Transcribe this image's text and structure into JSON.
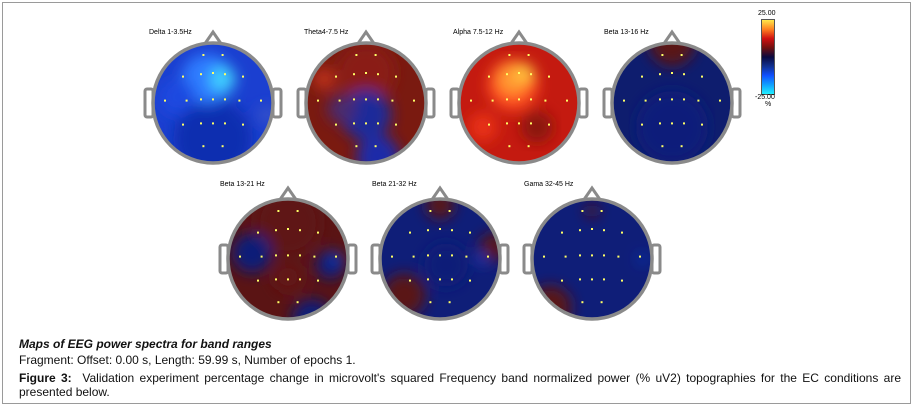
{
  "maps": [
    {
      "id": "delta",
      "label": "Delta 1-3.5Hz",
      "colors": {
        "bg": "#1b3fd0",
        "blobs": [
          [
            "#0f2fb0",
            0.5,
            0.8,
            0.55
          ],
          [
            "#2f7bff",
            0.45,
            0.3,
            0.35
          ],
          [
            "#3fd0ff",
            0.58,
            0.3,
            0.18
          ],
          [
            "#1c49e0",
            0.2,
            0.45,
            0.25
          ],
          [
            "#3b55c8",
            0.95,
            0.6,
            0.12
          ]
        ]
      }
    },
    {
      "id": "theta",
      "label": "Theta4-7.5 Hz",
      "colors": {
        "bg": "#7a1a10",
        "blobs": [
          [
            "#8a1f12",
            0.5,
            0.25,
            0.4
          ],
          [
            "#1f2a9a",
            0.5,
            0.6,
            0.35
          ],
          [
            "#1a2aa8",
            0.6,
            0.95,
            0.3
          ],
          [
            "#4a2a70",
            0.3,
            0.55,
            0.2
          ],
          [
            "#c0301a",
            0.15,
            0.3,
            0.15
          ]
        ]
      }
    },
    {
      "id": "alpha",
      "label": "Alpha 7.5-12 Hz",
      "colors": {
        "bg": "#c41a10",
        "blobs": [
          [
            "#ff5020",
            0.45,
            0.35,
            0.35
          ],
          [
            "#ff9a30",
            0.45,
            0.3,
            0.22
          ],
          [
            "#ffd040",
            0.55,
            0.25,
            0.12
          ],
          [
            "#8a1510",
            0.65,
            0.7,
            0.22
          ],
          [
            "#e83018",
            0.2,
            0.7,
            0.2
          ]
        ]
      }
    },
    {
      "id": "beta1316",
      "label": "Beta 13-16 Hz",
      "colors": {
        "bg": "#0e1d6e",
        "blobs": [
          [
            "#5a1212",
            0.5,
            0.0,
            0.32
          ],
          [
            "#101f7a",
            0.5,
            0.7,
            0.5
          ]
        ]
      }
    },
    {
      "id": "beta1321",
      "label": "Beta 13-21 Hz",
      "colors": {
        "bg": "#5a1414",
        "blobs": [
          [
            "#5e1616",
            0.5,
            0.2,
            0.45
          ],
          [
            "#0f1e78",
            0.2,
            0.45,
            0.28
          ],
          [
            "#0f1e78",
            0.85,
            0.55,
            0.2
          ],
          [
            "#1a3fd0",
            0.9,
            0.5,
            0.08
          ],
          [
            "#0f1e78",
            0.7,
            1.0,
            0.28
          ],
          [
            "#641616",
            0.5,
            0.65,
            0.2
          ]
        ]
      }
    },
    {
      "id": "beta2132",
      "label": "Beta 21-32 Hz",
      "colors": {
        "bg": "#0f1e78",
        "blobs": [
          [
            "#5a1414",
            0.5,
            0.05,
            0.2
          ],
          [
            "#5a1414",
            0.2,
            0.8,
            0.3
          ],
          [
            "#5a1414",
            0.95,
            0.4,
            0.2
          ],
          [
            "#1a3fd0",
            0.85,
            0.5,
            0.07
          ],
          [
            "#0f1e78",
            0.55,
            0.55,
            0.3
          ]
        ]
      }
    },
    {
      "id": "gama",
      "label": "Gama 32-45 Hz",
      "colors": {
        "bg": "#0f1e78",
        "blobs": [
          [
            "#5a1414",
            0.5,
            0.1,
            0.09
          ],
          [
            "#5a1414",
            0.15,
            0.9,
            0.3
          ],
          [
            "#1a3fd0",
            0.92,
            0.5,
            0.06
          ]
        ]
      }
    }
  ],
  "colorbar": {
    "max_label": "25.00",
    "min_label": "-25.00",
    "unit": "%",
    "stops": [
      "#ffe84a",
      "#ff8020",
      "#d01010",
      "#701010",
      "#0a0a40",
      "#103090",
      "#1050ff",
      "#10a0ff",
      "#20f0ff"
    ]
  },
  "caption": {
    "title": "Maps of EEG power spectra for band ranges",
    "fragment": "Fragment: Offset: 0.00 s, Length: 59.99 s, Number of epochs 1.",
    "figure_label": "Figure 3:",
    "figure_text": "Validation experiment percentage change in microvolt's squared Frequency band normalized power (% uV2) topographies for the EC conditions are presented below."
  }
}
